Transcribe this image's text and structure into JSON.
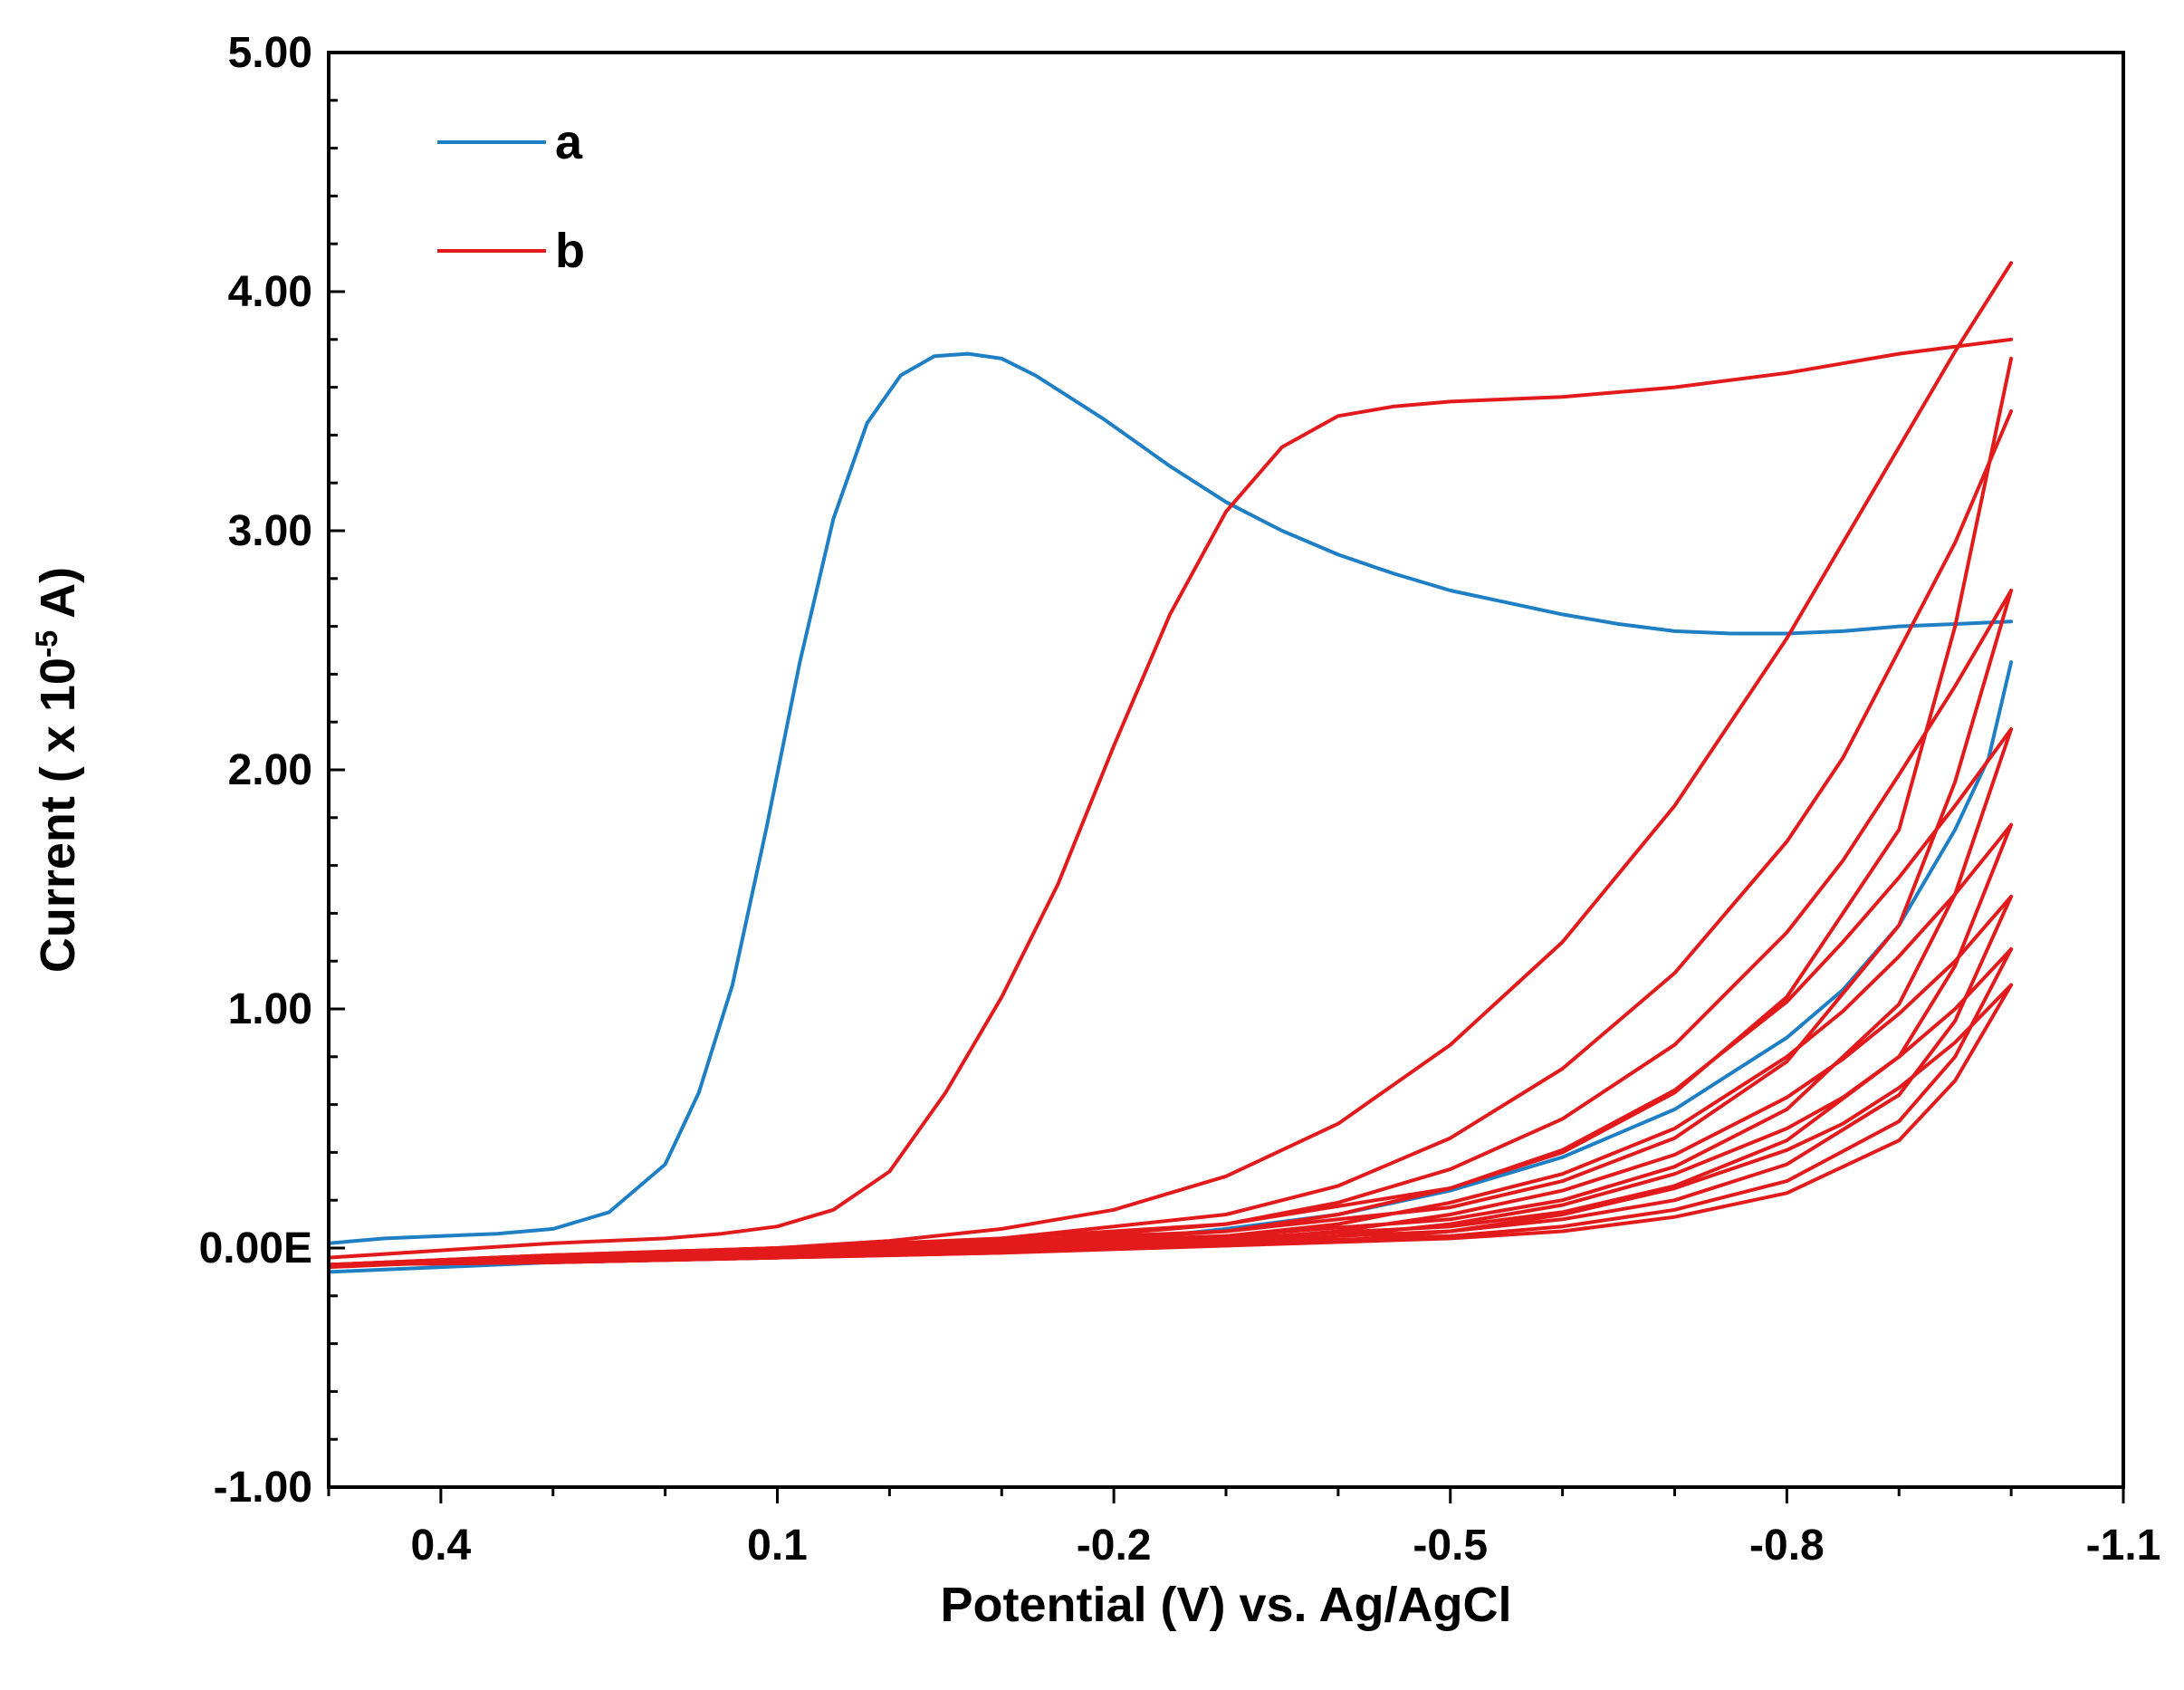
{
  "chart_data": {
    "type": "line",
    "title": "",
    "xlabel": "Potential (V) vs. Ag/AgCl",
    "ylabel": {
      "prefix": "Current ( x 10",
      "exponent": "-5",
      "suffix": " A)"
    },
    "xlim": [
      0.5,
      -1.1
    ],
    "ylim": [
      -1.0,
      5.0
    ],
    "x_ticks": [
      {
        "value": 0.4,
        "label": "0.4"
      },
      {
        "value": 0.1,
        "label": "0.1"
      },
      {
        "value": -0.2,
        "label": "-0.2"
      },
      {
        "value": -0.5,
        "label": "-0.5"
      },
      {
        "value": -0.8,
        "label": "-0.8"
      },
      {
        "value": -1.1,
        "label": "-1.1"
      }
    ],
    "y_ticks": [
      {
        "value": 5.0,
        "label": "5.00"
      },
      {
        "value": 4.0,
        "label": "4.00"
      },
      {
        "value": 3.0,
        "label": "3.00"
      },
      {
        "value": 2.0,
        "label": "2.00"
      },
      {
        "value": 1.0,
        "label": "1.00"
      },
      {
        "value": 0.0,
        "label": "0.00E"
      },
      {
        "value": -1.0,
        "label": "-1.00"
      }
    ],
    "legend": {
      "position": "top-left",
      "entries": [
        {
          "name": "a",
          "color": "#1f7fc4"
        },
        {
          "name": "b",
          "color": "#e31a1c"
        }
      ]
    },
    "series": [
      {
        "name": "a",
        "color": "#1f7fc4",
        "segments": [
          {
            "x": [
              0.5,
              0.45,
              0.4,
              0.35,
              0.3,
              0.25,
              0.2,
              0.17,
              0.14,
              0.11,
              0.08,
              0.05,
              0.02,
              -0.01,
              -0.04,
              -0.07,
              -0.1,
              -0.13,
              -0.16,
              -0.19,
              -0.22,
              -0.25,
              -0.3,
              -0.35,
              -0.4,
              -0.45,
              -0.5,
              -0.55,
              -0.6,
              -0.65,
              -0.7,
              -0.75,
              -0.8,
              -0.85,
              -0.9,
              -0.95,
              -1.0
            ],
            "y": [
              0.02,
              0.04,
              0.05,
              0.06,
              0.08,
              0.15,
              0.35,
              0.65,
              1.1,
              1.75,
              2.45,
              3.05,
              3.45,
              3.65,
              3.73,
              3.74,
              3.72,
              3.65,
              3.56,
              3.47,
              3.37,
              3.27,
              3.12,
              3.0,
              2.9,
              2.82,
              2.75,
              2.7,
              2.65,
              2.61,
              2.58,
              2.57,
              2.57,
              2.58,
              2.6,
              2.61,
              2.62
            ]
          },
          {
            "x": [
              -1.0,
              -0.98,
              -0.95,
              -0.9,
              -0.85,
              -0.8,
              -0.7,
              -0.6,
              -0.5,
              -0.4,
              -0.3,
              -0.2,
              -0.1,
              0.0,
              0.1,
              0.2,
              0.3,
              0.4,
              0.5
            ],
            "y": [
              2.45,
              2.05,
              1.75,
              1.35,
              1.08,
              0.88,
              0.58,
              0.38,
              0.24,
              0.14,
              0.08,
              0.03,
              0.0,
              -0.02,
              -0.04,
              -0.05,
              -0.06,
              -0.08,
              -0.1
            ]
          }
        ]
      },
      {
        "name": "b",
        "color": "#e31a1c",
        "segments": [
          {
            "x": [
              0.5,
              0.4,
              0.3,
              0.2,
              0.15,
              0.1,
              0.05,
              0.0,
              -0.05,
              -0.1,
              -0.15,
              -0.2,
              -0.25,
              -0.3,
              -0.35,
              -0.4,
              -0.45,
              -0.5,
              -0.55,
              -0.6,
              -0.7,
              -0.8,
              -0.9,
              -1.0
            ],
            "y": [
              -0.04,
              -0.01,
              0.02,
              0.04,
              0.06,
              0.09,
              0.16,
              0.32,
              0.65,
              1.05,
              1.52,
              2.1,
              2.65,
              3.08,
              3.35,
              3.48,
              3.52,
              3.54,
              3.55,
              3.56,
              3.6,
              3.66,
              3.74,
              3.8
            ]
          },
          {
            "x": [
              -1.0,
              -0.95,
              -0.9,
              -0.85,
              -0.8,
              -0.7,
              -0.6,
              -0.5,
              -0.4,
              -0.3,
              -0.2,
              -0.1,
              0.0,
              0.1,
              0.2,
              0.3,
              0.4,
              0.5
            ],
            "y": [
              4.12,
              3.75,
              3.35,
              2.95,
              2.55,
              1.85,
              1.28,
              0.85,
              0.52,
              0.3,
              0.16,
              0.08,
              0.03,
              0.0,
              -0.02,
              -0.04,
              -0.06,
              -0.08
            ]
          },
          {
            "x": [
              0.5,
              0.3,
              0.1,
              -0.1,
              -0.3,
              -0.5,
              -0.6,
              -0.7,
              -0.8,
              -0.9,
              -0.95,
              -1.0
            ],
            "y": [
              -0.07,
              -0.03,
              0.0,
              0.04,
              0.1,
              0.25,
              0.4,
              0.65,
              1.05,
              1.75,
              2.6,
              3.72
            ]
          },
          {
            "x": [
              -1.0,
              -0.95,
              -0.9,
              -0.85,
              -0.8,
              -0.7,
              -0.6,
              -0.5,
              -0.4,
              -0.3,
              -0.1,
              0.1,
              0.3,
              0.5
            ],
            "y": [
              3.5,
              2.95,
              2.5,
              2.05,
              1.7,
              1.15,
              0.75,
              0.46,
              0.26,
              0.14,
              0.04,
              -0.01,
              -0.04,
              -0.07
            ]
          },
          {
            "x": [
              0.5,
              0.3,
              0.1,
              -0.1,
              -0.3,
              -0.5,
              -0.6,
              -0.7,
              -0.8,
              -0.9,
              -0.95,
              -1.0
            ],
            "y": [
              -0.07,
              -0.03,
              0.0,
              0.03,
              0.07,
              0.17,
              0.28,
              0.46,
              0.78,
              1.35,
              1.95,
              2.75
            ]
          },
          {
            "x": [
              -1.0,
              -0.95,
              -0.9,
              -0.85,
              -0.8,
              -0.7,
              -0.6,
              -0.5,
              -0.4,
              -0.3,
              -0.1,
              0.1,
              0.3,
              0.5
            ],
            "y": [
              2.75,
              2.35,
              1.98,
              1.62,
              1.32,
              0.85,
              0.54,
              0.33,
              0.19,
              0.1,
              0.02,
              -0.02,
              -0.05,
              -0.07
            ]
          },
          {
            "x": [
              0.5,
              0.3,
              0.1,
              -0.1,
              -0.3,
              -0.5,
              -0.6,
              -0.7,
              -0.8,
              -0.9,
              -0.95,
              -1.0
            ],
            "y": [
              -0.07,
              -0.03,
              -0.01,
              0.02,
              0.05,
              0.12,
              0.2,
              0.34,
              0.58,
              1.02,
              1.48,
              2.17
            ]
          },
          {
            "x": [
              -1.0,
              -0.95,
              -0.9,
              -0.85,
              -0.8,
              -0.7,
              -0.6,
              -0.5,
              -0.4,
              -0.3,
              -0.1,
              0.1,
              0.3,
              0.5
            ],
            "y": [
              2.17,
              1.85,
              1.55,
              1.28,
              1.03,
              0.66,
              0.41,
              0.25,
              0.14,
              0.07,
              0.01,
              -0.03,
              -0.05,
              -0.07
            ]
          },
          {
            "x": [
              0.5,
              0.3,
              0.1,
              -0.1,
              -0.3,
              -0.5,
              -0.6,
              -0.7,
              -0.8,
              -0.9,
              -0.95,
              -1.0
            ],
            "y": [
              -0.07,
              -0.04,
              -0.01,
              0.01,
              0.04,
              0.09,
              0.15,
              0.26,
              0.45,
              0.8,
              1.18,
              1.77
            ]
          },
          {
            "x": [
              -1.0,
              -0.95,
              -0.9,
              -0.85,
              -0.8,
              -0.7,
              -0.6,
              -0.5,
              -0.4,
              -0.3,
              -0.1,
              0.1,
              0.3,
              0.5
            ],
            "y": [
              1.77,
              1.48,
              1.22,
              0.99,
              0.8,
              0.5,
              0.31,
              0.19,
              0.1,
              0.05,
              0.0,
              -0.03,
              -0.05,
              -0.07
            ]
          },
          {
            "x": [
              0.5,
              0.3,
              0.1,
              -0.1,
              -0.3,
              -0.5,
              -0.6,
              -0.7,
              -0.8,
              -0.9,
              -0.95,
              -1.0
            ],
            "y": [
              -0.07,
              -0.04,
              -0.02,
              0.0,
              0.03,
              0.07,
              0.12,
              0.2,
              0.35,
              0.64,
              0.95,
              1.47
            ]
          },
          {
            "x": [
              -1.0,
              -0.95,
              -0.9,
              -0.85,
              -0.8,
              -0.7,
              -0.6,
              -0.5,
              -0.4,
              -0.3,
              -0.1,
              0.1,
              0.3,
              0.5
            ],
            "y": [
              1.47,
              1.2,
              0.98,
              0.79,
              0.63,
              0.39,
              0.24,
              0.14,
              0.07,
              0.03,
              -0.01,
              -0.04,
              -0.06,
              -0.07
            ]
          },
          {
            "x": [
              0.5,
              0.3,
              0.1,
              -0.1,
              -0.3,
              -0.5,
              -0.6,
              -0.7,
              -0.8,
              -0.9,
              -0.95,
              -1.0
            ],
            "y": [
              -0.07,
              -0.05,
              -0.02,
              0.0,
              0.02,
              0.05,
              0.09,
              0.16,
              0.28,
              0.53,
              0.8,
              1.25
            ]
          },
          {
            "x": [
              -1.0,
              -0.95,
              -0.9,
              -0.85,
              -0.8,
              -0.7,
              -0.6,
              -0.5,
              -0.4,
              -0.3,
              -0.1,
              0.1,
              0.3,
              0.5
            ],
            "y": [
              1.25,
              1.0,
              0.8,
              0.63,
              0.5,
              0.31,
              0.18,
              0.1,
              0.05,
              0.02,
              -0.02,
              -0.04,
              -0.06,
              -0.07
            ]
          },
          {
            "x": [
              0.5,
              0.3,
              0.1,
              -0.1,
              -0.3,
              -0.5,
              -0.6,
              -0.7,
              -0.8,
              -0.9,
              -0.95,
              -1.0
            ],
            "y": [
              -0.07,
              -0.05,
              -0.03,
              -0.01,
              0.01,
              0.04,
              0.07,
              0.13,
              0.23,
              0.45,
              0.7,
              1.1
            ]
          },
          {
            "x": [
              -1.0,
              -0.95,
              -0.9,
              -0.85,
              -0.8,
              -0.7,
              -0.6,
              -0.5,
              -0.4,
              -0.3,
              -0.1,
              0.1,
              0.3,
              0.5
            ],
            "y": [
              1.1,
              0.86,
              0.67,
              0.52,
              0.41,
              0.25,
              0.14,
              0.07,
              0.03,
              0.01,
              -0.02,
              -0.04,
              -0.06,
              -0.07
            ]
          }
        ]
      }
    ]
  }
}
